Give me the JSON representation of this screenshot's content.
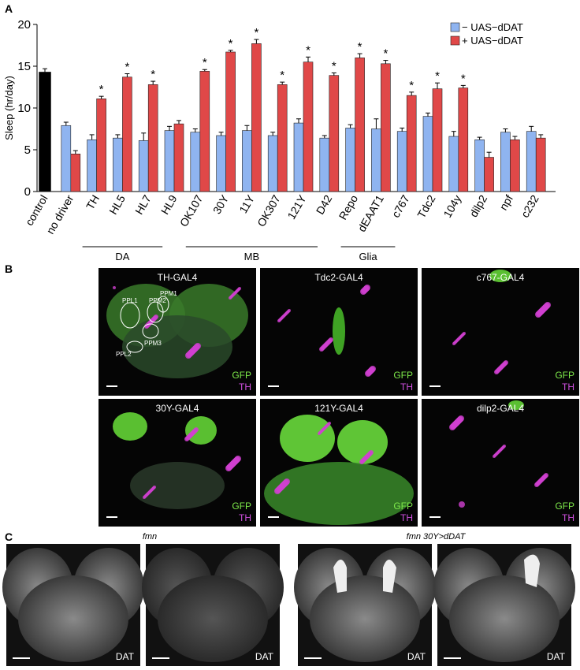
{
  "chart_data": {
    "type": "bar",
    "ylabel": "Sleep (hr/day)",
    "ylim": [
      0,
      20
    ],
    "yticks": [
      0,
      5,
      10,
      15,
      20
    ],
    "categories": [
      "control",
      "no driver",
      "TH",
      "HL5",
      "HL7",
      "HL9",
      "OK107",
      "30Y",
      "11Y",
      "OK307",
      "121Y",
      "D42",
      "Repo",
      "dEAAT1",
      "c767",
      "Tdc2",
      "104y",
      "dilp2",
      "npf",
      "c232"
    ],
    "series": [
      {
        "name": "− UAS−dDAT",
        "color": "#8fb4f0",
        "values": [
          null,
          7.9,
          6.2,
          6.4,
          6.1,
          7.3,
          7.1,
          6.7,
          7.3,
          6.7,
          8.2,
          6.4,
          7.6,
          7.5,
          7.2,
          9.0,
          6.6,
          6.2,
          7.1,
          7.2
        ],
        "errors": [
          null,
          0.4,
          0.6,
          0.4,
          0.9,
          0.5,
          0.4,
          0.4,
          0.6,
          0.4,
          0.5,
          0.3,
          0.4,
          1.2,
          0.4,
          0.4,
          0.6,
          0.3,
          0.4,
          0.6
        ]
      },
      {
        "name": "+ UAS−dDAT",
        "color": "#e04848",
        "values": [
          null,
          4.5,
          11.1,
          13.7,
          12.8,
          8.1,
          14.4,
          16.7,
          17.7,
          12.8,
          15.5,
          13.9,
          16.0,
          15.3,
          11.5,
          12.3,
          12.4,
          4.1,
          6.2,
          6.4
        ],
        "errors": [
          null,
          0.4,
          0.3,
          0.4,
          0.4,
          0.4,
          0.2,
          0.2,
          0.5,
          0.3,
          0.6,
          0.3,
          0.5,
          0.4,
          0.4,
          0.7,
          0.3,
          0.6,
          0.4,
          0.4
        ],
        "significance": [
          null,
          null,
          "*",
          "*",
          "*",
          null,
          "*",
          "*",
          "*",
          "*",
          "*",
          "*",
          "*",
          "*",
          "*",
          "*",
          "*",
          null,
          null,
          null
        ]
      },
      {
        "color": "#000000",
        "values": [
          14.3,
          null,
          null,
          null,
          null,
          null,
          null,
          null,
          null,
          null,
          null,
          null,
          null,
          null,
          null,
          null,
          null,
          null,
          null,
          null
        ],
        "errors": [
          0.4,
          null,
          null,
          null,
          null,
          null,
          null,
          null,
          null,
          null,
          null,
          null,
          null,
          null,
          null,
          null,
          null,
          null,
          null,
          null
        ]
      }
    ],
    "groups": [
      {
        "label": "DA",
        "from": "TH",
        "to": "HL7"
      },
      {
        "label": "MB",
        "from": "OK107",
        "to": "121Y"
      },
      {
        "label": "Glia",
        "from": "Repo",
        "to": "dEAAT1"
      }
    ],
    "legend": "upper right"
  },
  "panel_labels": [
    "A",
    "B",
    "C"
  ],
  "panel_b": {
    "images": [
      {
        "title": "TH-GAL4",
        "channels": [
          "GFP",
          "TH"
        ]
      },
      {
        "title": "Tdc2-GAL4",
        "channels": [
          "GFP",
          "TH"
        ]
      },
      {
        "title": "c767-GAL4",
        "channels": [
          "GFP",
          "TH"
        ]
      },
      {
        "title": "30Y-GAL4",
        "channels": [
          "GFP",
          "TH"
        ]
      },
      {
        "title": "121Y-GAL4",
        "channels": [
          "GFP",
          "TH"
        ]
      },
      {
        "title": "dilp2-GAL4",
        "channels": [
          "GFP",
          "TH"
        ]
      }
    ],
    "regions": [
      "PPL1",
      "PPM2",
      "PPM1",
      "PPL2",
      "PPM3"
    ]
  },
  "panel_c": {
    "groups": [
      "fmn",
      "fmn 30Y>dDAT"
    ],
    "images": [
      {
        "label": "DAT"
      },
      {
        "label": "DAT"
      },
      {
        "label": "DAT"
      },
      {
        "label": "DAT"
      }
    ]
  }
}
